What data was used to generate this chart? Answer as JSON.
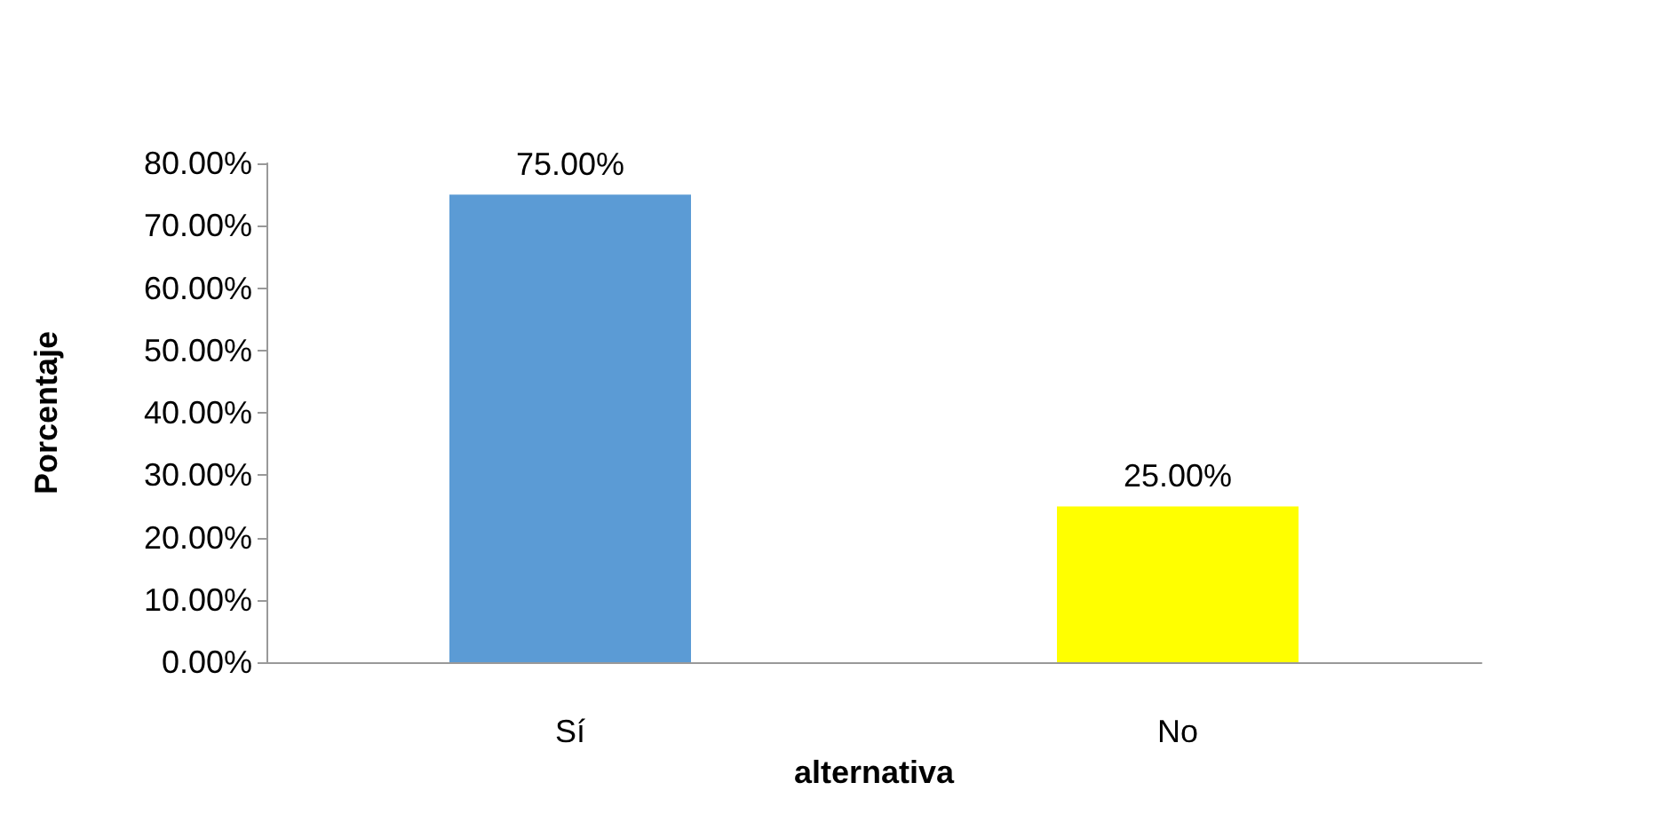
{
  "chart_data": {
    "type": "bar",
    "xlabel": "alternativa",
    "ylabel": "Porcentaje",
    "categories": [
      "Sí",
      "No"
    ],
    "values": [
      75,
      25
    ],
    "colors": [
      "#5b9bd5",
      "#ffff00"
    ],
    "value_labels": [
      "75.00%",
      "25.00%"
    ],
    "ylim": [
      0,
      80
    ],
    "yticks": [
      {
        "value": 0,
        "label": "0.00%"
      },
      {
        "value": 10,
        "label": "10.00%"
      },
      {
        "value": 20,
        "label": "20.00%"
      },
      {
        "value": 30,
        "label": "30.00%"
      },
      {
        "value": 40,
        "label": "40.00%"
      },
      {
        "value": 50,
        "label": "50.00%"
      },
      {
        "value": 60,
        "label": "60.00%"
      },
      {
        "value": 70,
        "label": "70.00%"
      },
      {
        "value": 80,
        "label": "80.00%"
      }
    ],
    "grid": false
  }
}
